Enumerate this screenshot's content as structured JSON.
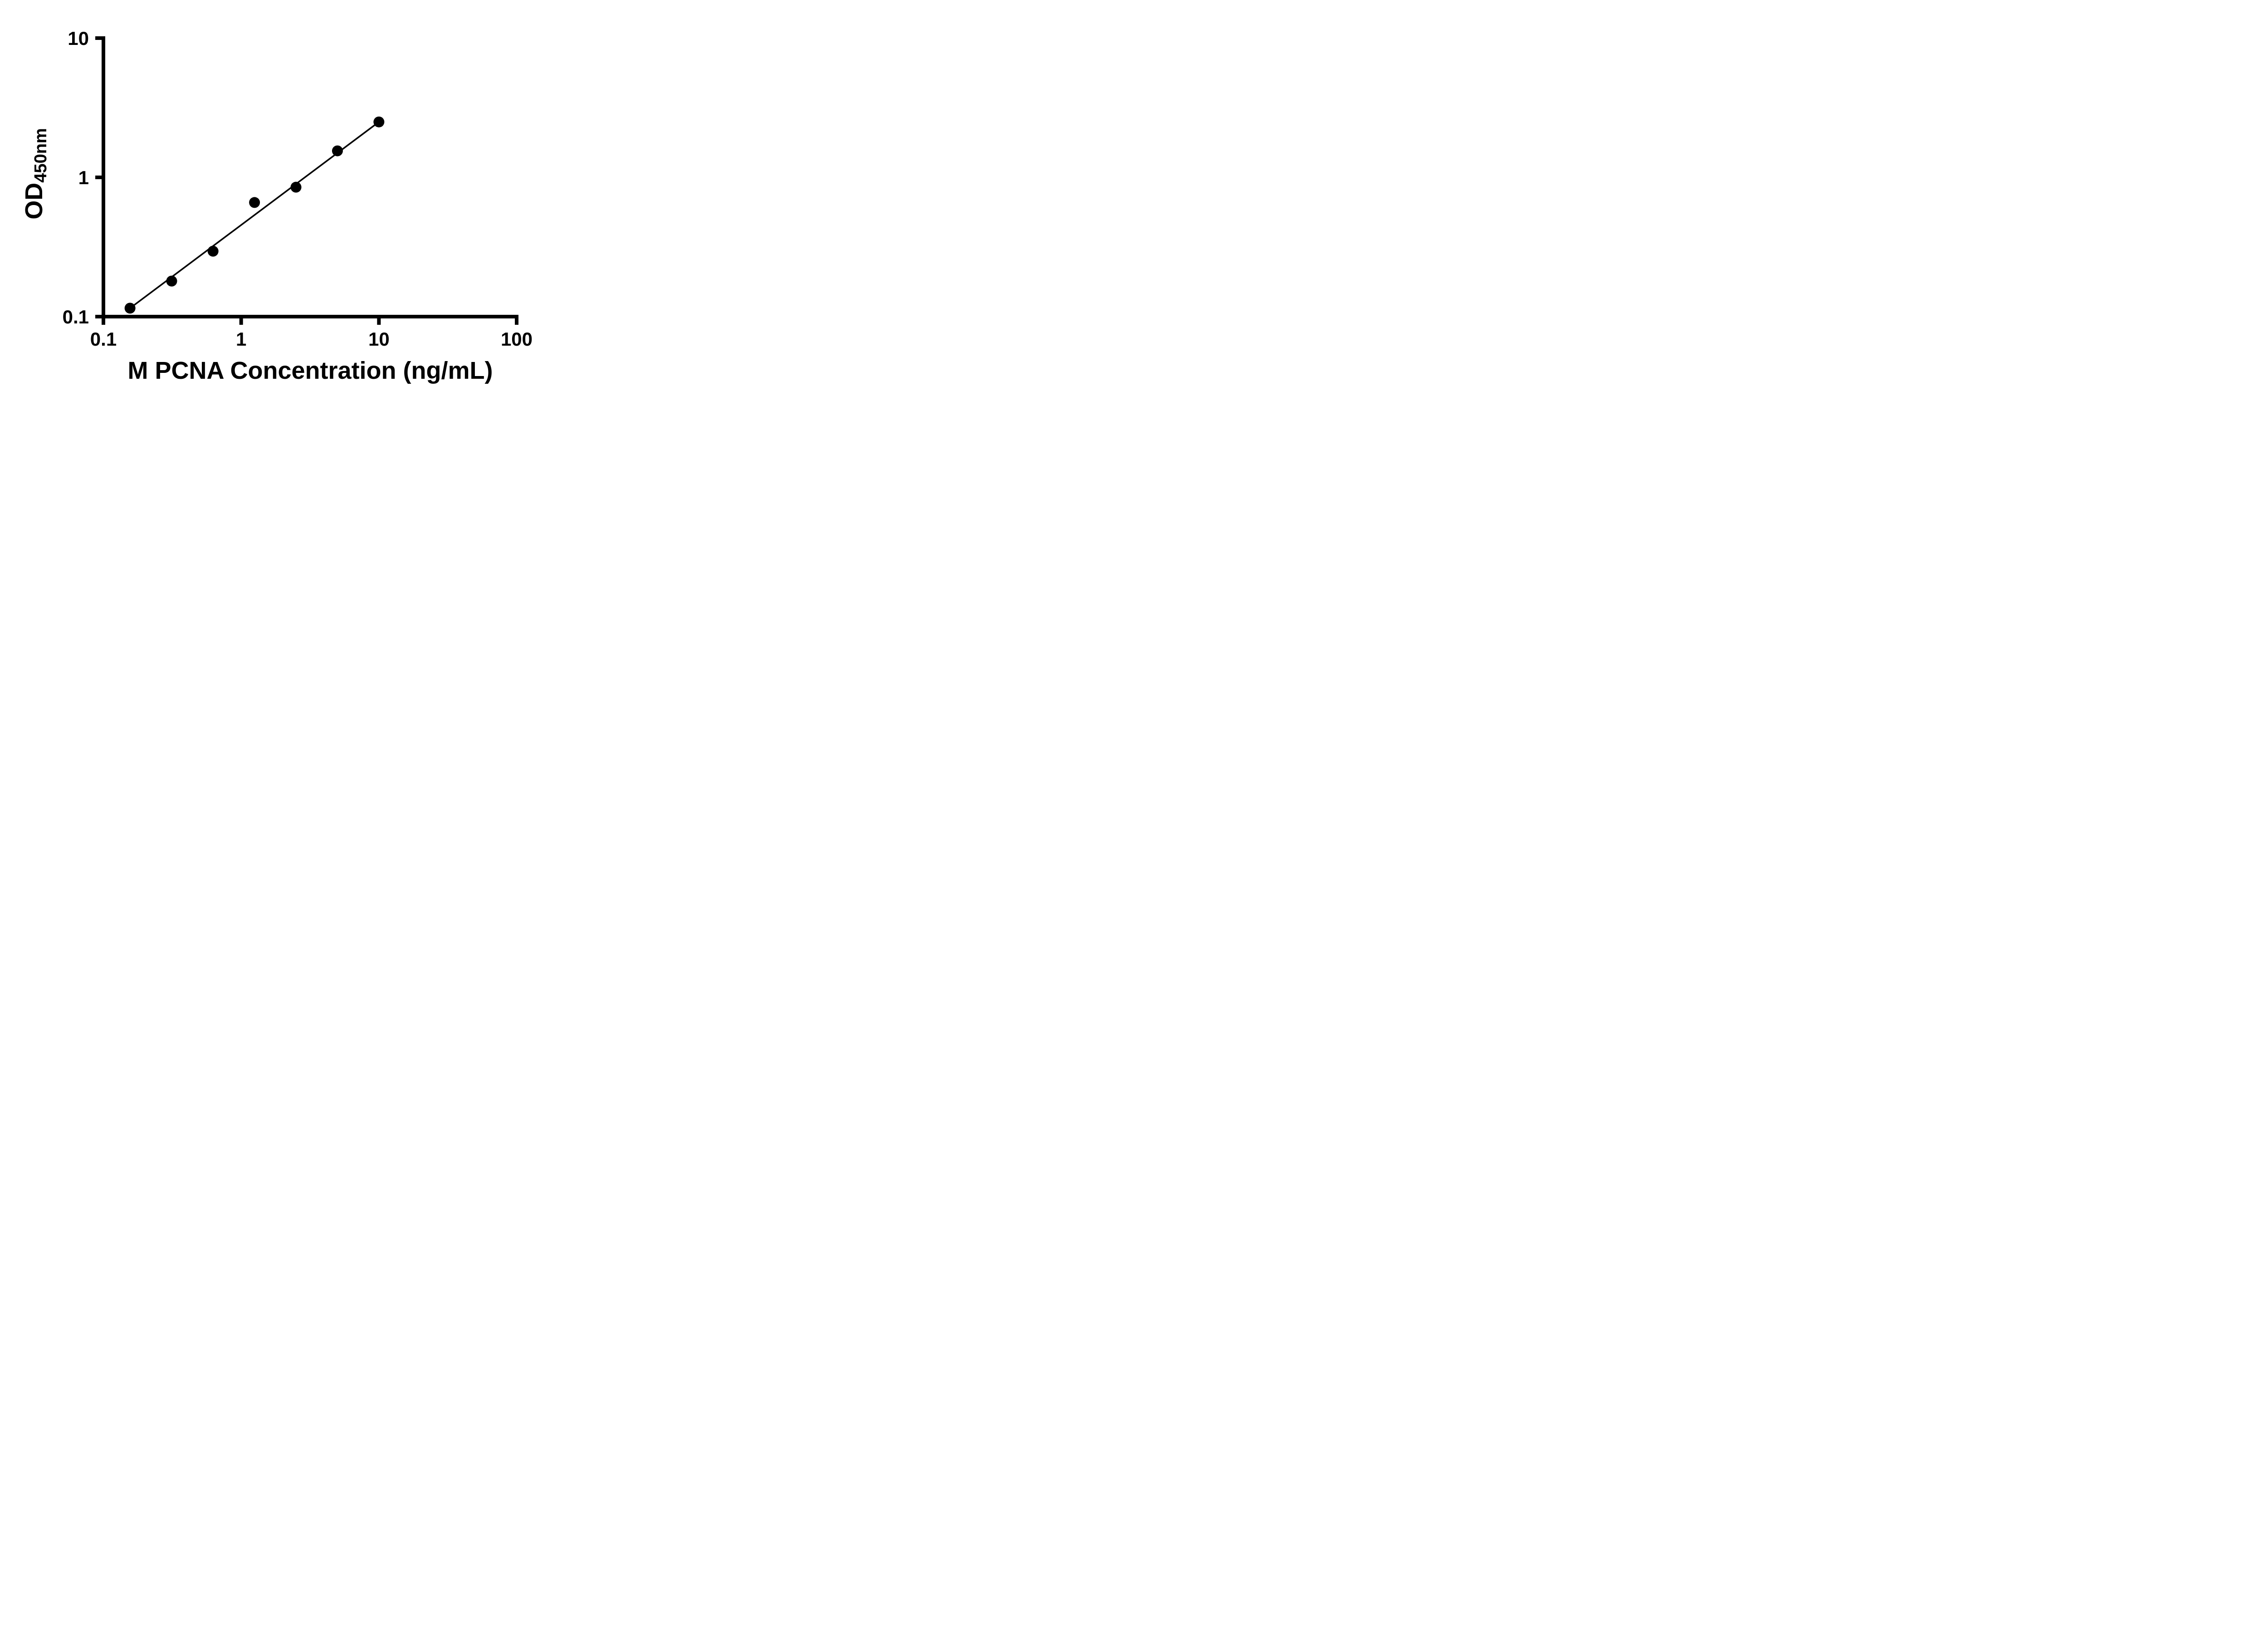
{
  "chart_data": {
    "type": "scatter",
    "title": "",
    "xlabel": "M PCNA Concentration (ng/mL)",
    "ylabel_main": "OD",
    "ylabel_sub": "450nm",
    "x_scale": "log",
    "y_scale": "log",
    "xlim": [
      0.1,
      100
    ],
    "ylim": [
      0.1,
      10
    ],
    "x_ticks": [
      0.1,
      1,
      10,
      100
    ],
    "x_tick_labels": [
      "0.1",
      "1",
      "10",
      "100"
    ],
    "y_ticks": [
      0.1,
      1,
      10
    ],
    "y_tick_labels": [
      "0.1",
      "1",
      "10"
    ],
    "points": [
      {
        "x": 0.156,
        "y": 0.115
      },
      {
        "x": 0.313,
        "y": 0.18
      },
      {
        "x": 0.625,
        "y": 0.295
      },
      {
        "x": 1.25,
        "y": 0.66
      },
      {
        "x": 2.5,
        "y": 0.85
      },
      {
        "x": 5,
        "y": 1.55
      },
      {
        "x": 10,
        "y": 2.5
      }
    ],
    "trend_line": {
      "x1": 0.156,
      "y1": 0.115,
      "x2": 10,
      "y2": 2.5
    },
    "grid": false,
    "legend": "none",
    "marker_color": "#000000",
    "line_color": "#000000",
    "axis_color": "#000000",
    "background_color": "#ffffff"
  }
}
